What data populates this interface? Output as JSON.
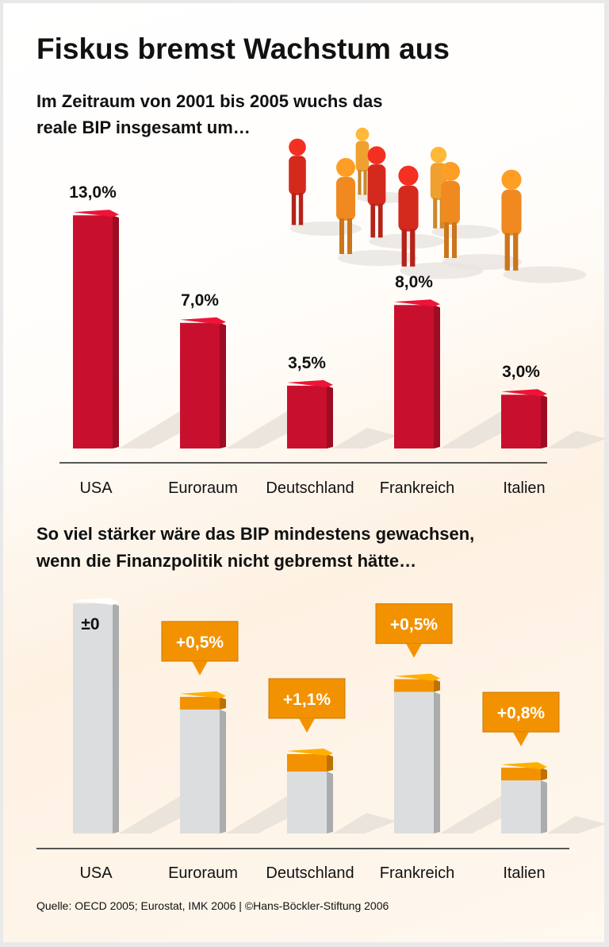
{
  "title": "Fiskus bremst Wachstum aus",
  "source": "Quelle: OECD 2005; Eurostat, IMK 2006 | ©Hans-Böckler-Stiftung 2006",
  "colors": {
    "bar_red": "#c8102e",
    "bar_gray": "#dcdddf",
    "bar_orange": "#f39200",
    "accent_text": "#ffffff"
  },
  "chart_data": [
    {
      "type": "bar",
      "title": "Im Zeitraum von 2001 bis 2005 wuchs das reale BIP insgesamt um…",
      "title_lines": [
        "Im Zeitraum von 2001 bis 2005 wuchs das",
        "reale BIP insgesamt um…"
      ],
      "categories": [
        "USA",
        "Euroraum",
        "Deutschland",
        "Frankreich",
        "Italien"
      ],
      "values": [
        13.0,
        7.0,
        3.5,
        8.0,
        3.0
      ],
      "labels": [
        "13,0%",
        "7,0%",
        "3,5%",
        "8,0%",
        "3,0%"
      ],
      "unit": "%",
      "grid": false
    },
    {
      "type": "bar",
      "stacked": true,
      "title": "So viel stärker wäre das BIP mindestens gewachsen, wenn die Finanzpolitik nicht gebremst hätte…",
      "title_lines": [
        "So viel stärker wäre das BIP mindestens gewachsen,",
        "wenn die Finanzpolitik nicht gebremst hätte…"
      ],
      "categories": [
        "USA",
        "Euroraum",
        "Deutschland",
        "Frankreich",
        "Italien"
      ],
      "series": [
        {
          "values": [
            13.0,
            7.0,
            3.5,
            8.0,
            3.0
          ]
        },
        {
          "values": [
            0,
            0.5,
            1.1,
            0.5,
            0.8
          ]
        }
      ],
      "labels": [
        "±0",
        "+0,5%",
        "+1,1%",
        "+0,5%",
        "+0,8%"
      ],
      "grid": false
    }
  ]
}
